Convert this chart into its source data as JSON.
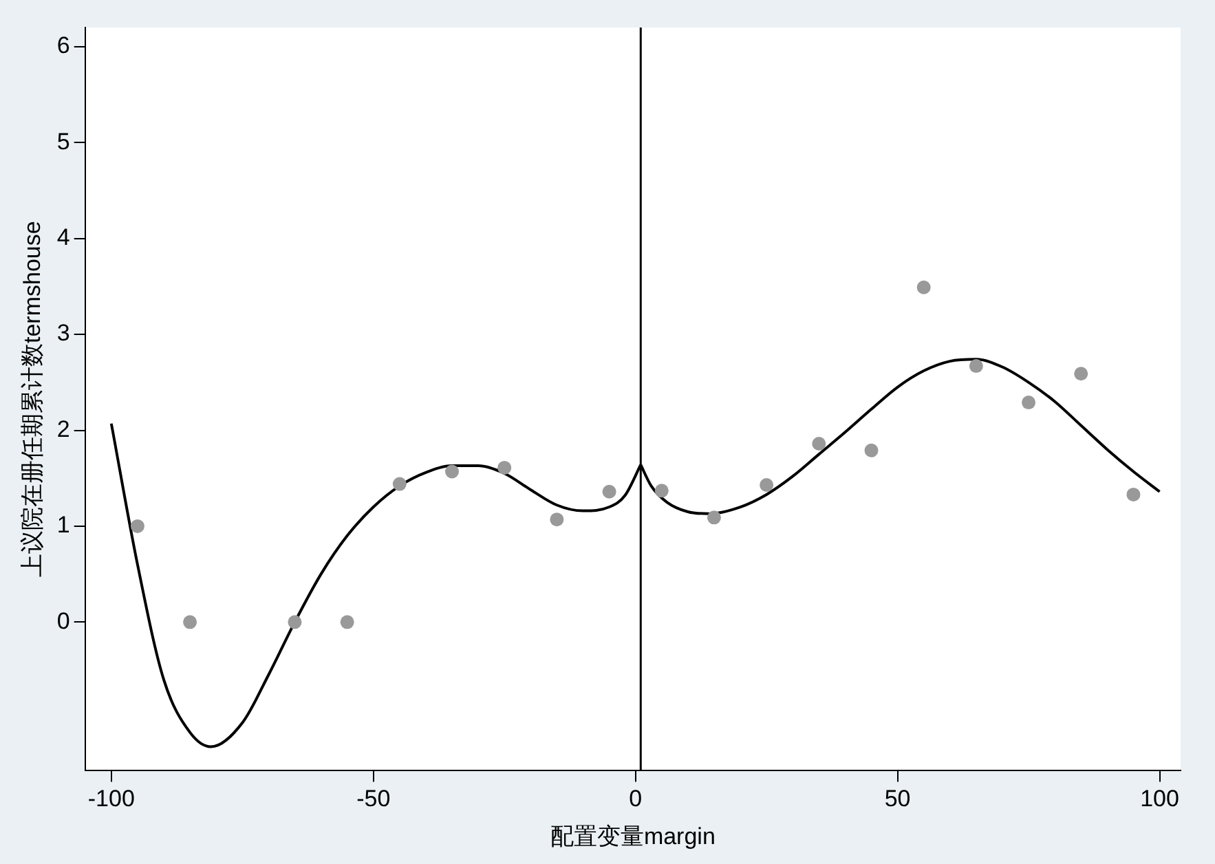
{
  "chart_data": {
    "type": "scatter",
    "xlabel": "配置变量margin",
    "ylabel": "上议院在册任期累计数termshouse",
    "xlim": [
      -105,
      104
    ],
    "xticks": [
      -100,
      -50,
      0,
      50,
      100
    ],
    "ylim": [
      -1.55,
      6.2
    ],
    "yticks": [
      0,
      1,
      2,
      3,
      4,
      5,
      6
    ],
    "marker": "circle",
    "ref_lines": [
      {
        "axis": "x",
        "value": 1,
        "color": "#000000"
      }
    ],
    "series": [
      {
        "type": "scatter",
        "color": "#999999",
        "x": [
          -95,
          -85,
          -65,
          -55,
          -45,
          -35,
          -25,
          -15,
          -5,
          5,
          15,
          25,
          35,
          45,
          55,
          65,
          75,
          85,
          95
        ],
        "values": [
          1.0,
          0,
          0,
          0,
          1.44,
          1.57,
          1.61,
          1.07,
          1.36,
          1.37,
          1.09,
          1.43,
          1.86,
          1.79,
          3.49,
          2.67,
          2.29,
          2.59,
          1.33
        ]
      },
      {
        "type": "line",
        "color": "#000000",
        "marker": "none",
        "x": [
          -100,
          -95,
          -90,
          -85,
          -81,
          -75,
          -70,
          -65,
          -60,
          -55,
          -50,
          -45,
          -40,
          -35,
          -30,
          -25,
          -20,
          -15,
          -10,
          -5,
          -2,
          1
        ],
        "values": [
          2.07,
          0.6,
          -0.6,
          -1.15,
          -1.3,
          -1.05,
          -0.55,
          0,
          0.5,
          0.9,
          1.2,
          1.42,
          1.56,
          1.63,
          1.63,
          1.55,
          1.38,
          1.22,
          1.16,
          1.2,
          1.32,
          1.64
        ]
      },
      {
        "type": "line",
        "color": "#000000",
        "marker": "none",
        "x": [
          1,
          3,
          6,
          10,
          14,
          20,
          25,
          30,
          35,
          40,
          45,
          50,
          55,
          60,
          65,
          70,
          75,
          80,
          85,
          90,
          95,
          100
        ],
        "values": [
          1.64,
          1.42,
          1.25,
          1.15,
          1.13,
          1.2,
          1.33,
          1.52,
          1.75,
          1.98,
          2.22,
          2.45,
          2.62,
          2.72,
          2.74,
          2.66,
          2.5,
          2.3,
          2.05,
          1.8,
          1.57,
          1.36
        ]
      }
    ]
  }
}
